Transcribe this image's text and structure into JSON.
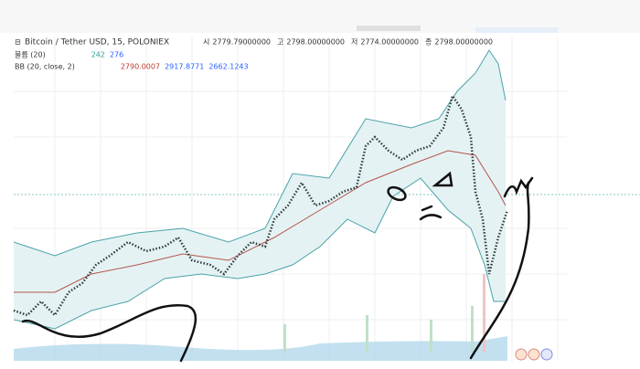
{
  "header": {
    "title": "Bitcoin / Tether USD, 15, POLONIEX",
    "ohlc": [
      {
        "label": "시",
        "value": "2779.79000000"
      },
      {
        "label": "고",
        "value": "2798.00000000"
      },
      {
        "label": "저",
        "value": "2774.00000000"
      },
      {
        "label": "종",
        "value": "2798.00000000"
      }
    ]
  },
  "indicators": [
    {
      "name": "볼륨 (20)",
      "values": [
        "242",
        "276"
      ],
      "colors": [
        "#26a69a",
        "#2962ff"
      ]
    },
    {
      "name": "BB (20, close, 2)",
      "values": [
        "2790.0007",
        "2917.8771",
        "2662.1243"
      ],
      "colors": [
        "#c0392b",
        "#2962ff",
        "#2962ff"
      ]
    }
  ]
}
